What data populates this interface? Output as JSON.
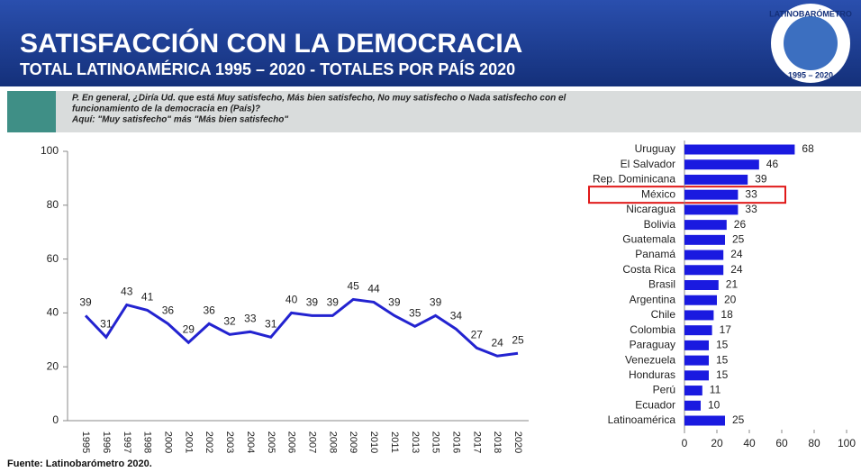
{
  "header": {
    "title": "SATISFACCIÓN CON LA DEMOCRACIA",
    "subtitle": "TOTAL LATINOAMÉRICA 1995 – 2020 - TOTALES POR PAÍS 2020",
    "logo_text": "LATINOBARÓMETRO",
    "logo_years": "1995 – 2020"
  },
  "question": [
    "P. En general, ¿Diría Ud. que está Muy satisfecho, Más bien satisfecho, No muy satisfecho o Nada satisfecho con el",
    "funcionamiento de la democracia en (País)?",
    "Aquí: \"Muy satisfecho\" más \"Más bien satisfecho\""
  ],
  "source": "Fuente: Latinobarómetro 2020.",
  "chart_data": [
    {
      "type": "line",
      "categories": [
        "1995",
        "1996",
        "1997",
        "1998",
        "2000",
        "2001",
        "2002",
        "2003",
        "2004",
        "2005",
        "2006",
        "2007",
        "2008",
        "2009",
        "2010",
        "2011",
        "2013",
        "2015",
        "2016",
        "2017",
        "2018",
        "2020"
      ],
      "values": [
        39,
        31,
        43,
        41,
        36,
        29,
        36,
        32,
        33,
        31,
        40,
        39,
        39,
        45,
        44,
        39,
        35,
        39,
        34,
        27,
        24,
        25
      ],
      "color": "#2323d0",
      "ylim": [
        0,
        100
      ],
      "yticks": [
        0,
        20,
        40,
        60,
        80,
        100
      ]
    },
    {
      "type": "bar",
      "orientation": "horizontal",
      "categories": [
        "Uruguay",
        "El Salvador",
        "Rep. Dominicana",
        "México",
        "Nicaragua",
        "Bolivia",
        "Guatemala",
        "Panamá",
        "Costa Rica",
        "Brasil",
        "Argentina",
        "Chile",
        "Colombia",
        "Paraguay",
        "Venezuela",
        "Honduras",
        "Perú",
        "Ecuador",
        "Latinoamérica"
      ],
      "values": [
        68,
        46,
        39,
        33,
        33,
        26,
        25,
        24,
        24,
        21,
        20,
        18,
        17,
        15,
        15,
        15,
        11,
        10,
        25
      ],
      "color": "#1a1ae0",
      "xlim": [
        0,
        100
      ],
      "xticks": [
        0,
        20,
        40,
        60,
        80,
        100
      ],
      "highlight_index": 3,
      "highlight_color": "#e01818"
    }
  ]
}
